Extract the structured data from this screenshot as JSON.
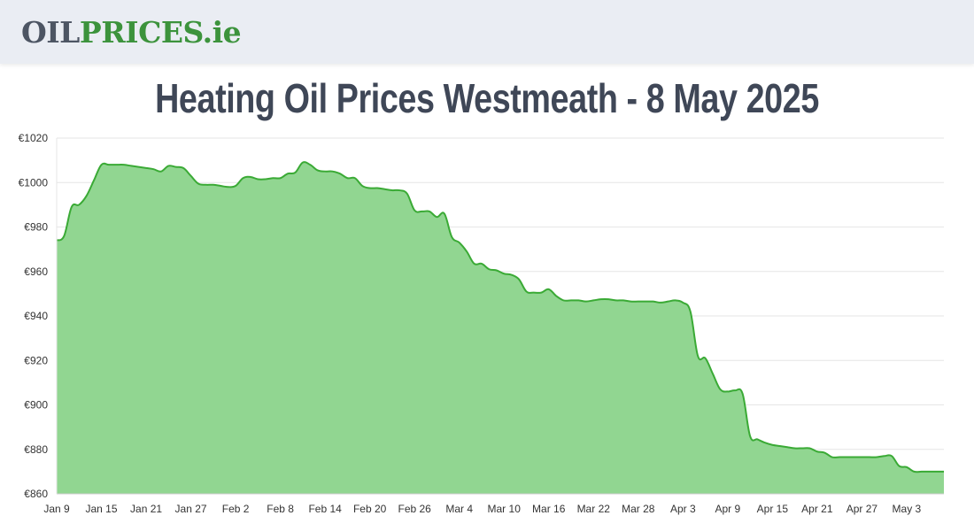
{
  "logo": {
    "part1": "OIL",
    "part2": "PRICES",
    "part3": ".ie"
  },
  "colors": {
    "header_bg": "#eaedf3",
    "logo_gray": "#4d5563",
    "logo_green": "#3c933c",
    "title": "#3f4757",
    "line": "#3aaa35",
    "fill": "#91d691"
  },
  "chart_data": {
    "type": "area",
    "title": "Heating Oil Prices Westmeath - 8 May 2025",
    "xlabel": "",
    "ylabel": "",
    "ylim": [
      860,
      1020
    ],
    "y_ticks": [
      "€1020",
      "€1000",
      "€980",
      "€960",
      "€940",
      "€920",
      "€900",
      "€880",
      "€860"
    ],
    "y_tick_values": [
      1020,
      1000,
      980,
      960,
      940,
      920,
      900,
      880,
      860
    ],
    "x_tick_labels": [
      "Jan 9",
      "Jan 15",
      "Jan 21",
      "Jan 27",
      "Feb 2",
      "Feb 8",
      "Feb 14",
      "Feb 20",
      "Feb 26",
      "Mar 4",
      "Mar 10",
      "Mar 16",
      "Mar 22",
      "Mar 28",
      "Apr 3",
      "Apr 9",
      "Apr 15",
      "Apr 21",
      "Apr 27",
      "May 3"
    ],
    "x_tick_days": [
      0,
      6,
      12,
      18,
      24,
      30,
      36,
      42,
      48,
      54,
      60,
      66,
      72,
      78,
      84,
      90,
      96,
      102,
      108,
      114
    ],
    "x_range_days": [
      0,
      119
    ],
    "grid": true,
    "series": [
      {
        "x_days": [
          0,
          1,
          2,
          3,
          4,
          5,
          6,
          7,
          8,
          9,
          10,
          11,
          12,
          13,
          14,
          15,
          16,
          17,
          18,
          19,
          20,
          21,
          22,
          23,
          24,
          25,
          26,
          27,
          28,
          29,
          30,
          31,
          32,
          33,
          34,
          35,
          36,
          37,
          38,
          39,
          40,
          41,
          42,
          43,
          44,
          45,
          46,
          47,
          48,
          49,
          50,
          51,
          52,
          53,
          54,
          55,
          56,
          57,
          58,
          59,
          60,
          61,
          62,
          63,
          64,
          65,
          66,
          67,
          68,
          69,
          70,
          71,
          72,
          73,
          74,
          75,
          76,
          77,
          78,
          79,
          80,
          81,
          82,
          83,
          84,
          85,
          86,
          87,
          88,
          89,
          90,
          91,
          92,
          93,
          94,
          95,
          96,
          97,
          98,
          99,
          100,
          101,
          102,
          103,
          104,
          105,
          106,
          107,
          108,
          109,
          110,
          111,
          112,
          113,
          114,
          115,
          116,
          117,
          118,
          119
        ],
        "values": [
          974,
          976,
          989,
          990,
          994,
          1001,
          1008,
          1008,
          1008,
          1008,
          1007.5,
          1007,
          1006.5,
          1006,
          1005,
          1007.5,
          1007,
          1006.5,
          1003,
          999.5,
          999,
          999,
          998.5,
          998,
          998.5,
          1002,
          1002.5,
          1001.5,
          1001.5,
          1002,
          1002,
          1004,
          1004.5,
          1009,
          1008,
          1005.5,
          1005,
          1005,
          1004,
          1002,
          1002,
          998.5,
          997.5,
          997.5,
          997,
          996.5,
          996.5,
          995,
          987.5,
          987,
          987,
          984.5,
          986,
          975.5,
          973,
          969,
          963.5,
          963.5,
          961,
          960.5,
          959,
          958.5,
          956.5,
          951,
          950.5,
          950.5,
          952,
          949,
          947,
          947,
          947,
          946.5,
          947,
          947.5,
          947.5,
          947,
          947,
          946.5,
          946.5,
          946.5,
          946.5,
          946,
          946.5,
          947,
          946,
          942,
          922,
          921,
          914,
          907,
          906,
          906.5,
          905,
          886,
          884.5,
          883,
          882,
          881.5,
          881,
          880.5,
          880.5,
          880.5,
          879,
          878.5,
          876.5,
          876.5,
          876.5,
          876.5,
          876.5,
          876.5,
          876.5,
          877,
          877,
          872.5,
          872,
          870,
          870,
          870,
          870,
          870
        ]
      }
    ]
  }
}
